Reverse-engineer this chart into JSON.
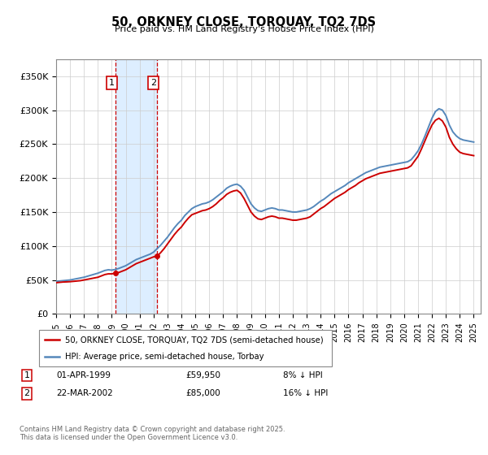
{
  "title": "50, ORKNEY CLOSE, TORQUAY, TQ2 7DS",
  "subtitle": "Price paid vs. HM Land Registry's House Price Index (HPI)",
  "legend_label_red": "50, ORKNEY CLOSE, TORQUAY, TQ2 7DS (semi-detached house)",
  "legend_label_blue": "HPI: Average price, semi-detached house, Torbay",
  "footer": "Contains HM Land Registry data © Crown copyright and database right 2025.\nThis data is licensed under the Open Government Licence v3.0.",
  "xmin": 1995.0,
  "xmax": 2025.5,
  "ymin": 0,
  "ymax": 375000,
  "yticks": [
    0,
    50000,
    100000,
    150000,
    200000,
    250000,
    300000,
    350000
  ],
  "ytick_labels": [
    "£0",
    "£50K",
    "£100K",
    "£150K",
    "£200K",
    "£250K",
    "£300K",
    "£350K"
  ],
  "purchase1_date": 1999.25,
  "purchase1_price": 59950,
  "purchase2_date": 2002.22,
  "purchase2_price": 85000,
  "color_red": "#cc0000",
  "color_blue": "#5588bb",
  "color_shade": "#ddeeff",
  "grid_color": "#cccccc",
  "xtick_years": [
    1995,
    1996,
    1997,
    1998,
    1999,
    2000,
    2001,
    2002,
    2003,
    2004,
    2005,
    2006,
    2007,
    2008,
    2009,
    2010,
    2011,
    2012,
    2013,
    2014,
    2015,
    2016,
    2017,
    2018,
    2019,
    2020,
    2021,
    2022,
    2023,
    2024,
    2025
  ],
  "hpi_years": [
    1995.0,
    1995.25,
    1995.5,
    1995.75,
    1996.0,
    1996.25,
    1996.5,
    1996.75,
    1997.0,
    1997.25,
    1997.5,
    1997.75,
    1998.0,
    1998.25,
    1998.5,
    1998.75,
    1999.0,
    1999.25,
    1999.5,
    1999.75,
    2000.0,
    2000.25,
    2000.5,
    2000.75,
    2001.0,
    2001.25,
    2001.5,
    2001.75,
    2002.0,
    2002.25,
    2002.5,
    2002.75,
    2003.0,
    2003.25,
    2003.5,
    2003.75,
    2004.0,
    2004.25,
    2004.5,
    2004.75,
    2005.0,
    2005.25,
    2005.5,
    2005.75,
    2006.0,
    2006.25,
    2006.5,
    2006.75,
    2007.0,
    2007.25,
    2007.5,
    2007.75,
    2008.0,
    2008.25,
    2008.5,
    2008.75,
    2009.0,
    2009.25,
    2009.5,
    2009.75,
    2010.0,
    2010.25,
    2010.5,
    2010.75,
    2011.0,
    2011.25,
    2011.5,
    2011.75,
    2012.0,
    2012.25,
    2012.5,
    2012.75,
    2013.0,
    2013.25,
    2013.5,
    2013.75,
    2014.0,
    2014.25,
    2014.5,
    2014.75,
    2015.0,
    2015.25,
    2015.5,
    2015.75,
    2016.0,
    2016.25,
    2016.5,
    2016.75,
    2017.0,
    2017.25,
    2017.5,
    2017.75,
    2018.0,
    2018.25,
    2018.5,
    2018.75,
    2019.0,
    2019.25,
    2019.5,
    2019.75,
    2020.0,
    2020.25,
    2020.5,
    2020.75,
    2021.0,
    2021.25,
    2021.5,
    2021.75,
    2022.0,
    2022.25,
    2022.5,
    2022.75,
    2023.0,
    2023.25,
    2023.5,
    2023.75,
    2024.0,
    2024.25,
    2024.5,
    2024.75,
    2025.0
  ],
  "hpi_vals": [
    48000,
    48500,
    49000,
    49500,
    50000,
    51000,
    52000,
    53000,
    54000,
    55500,
    57000,
    58500,
    60000,
    62000,
    64000,
    65000,
    64500,
    65500,
    67000,
    69000,
    71000,
    74000,
    77000,
    80000,
    82000,
    84000,
    86000,
    88000,
    91000,
    96000,
    101000,
    107000,
    113000,
    120000,
    127000,
    133000,
    138000,
    145000,
    150000,
    155000,
    158000,
    160000,
    162000,
    163000,
    165000,
    168000,
    172000,
    176000,
    180000,
    185000,
    188000,
    190000,
    191000,
    188000,
    182000,
    172000,
    162000,
    156000,
    152000,
    151000,
    153000,
    155000,
    156000,
    155000,
    153000,
    153000,
    152000,
    151000,
    150000,
    150000,
    151000,
    152000,
    153000,
    155000,
    158000,
    162000,
    166000,
    169000,
    173000,
    177000,
    180000,
    183000,
    186000,
    189000,
    193000,
    196000,
    199000,
    202000,
    205000,
    208000,
    210000,
    212000,
    214000,
    216000,
    217000,
    218000,
    219000,
    220000,
    221000,
    222000,
    223000,
    224000,
    227000,
    233000,
    240000,
    250000,
    262000,
    275000,
    288000,
    298000,
    302000,
    300000,
    292000,
    278000,
    268000,
    262000,
    258000,
    256000,
    255000,
    254000,
    253000
  ],
  "red_years": [
    1995.0,
    1995.25,
    1995.5,
    1995.75,
    1996.0,
    1996.25,
    1996.5,
    1996.75,
    1997.0,
    1997.25,
    1997.5,
    1997.75,
    1998.0,
    1998.25,
    1998.5,
    1998.75,
    1999.0,
    1999.25,
    1999.5,
    1999.75,
    2000.0,
    2000.25,
    2000.5,
    2000.75,
    2001.0,
    2001.25,
    2001.5,
    2001.75,
    2002.0,
    2002.25,
    2002.5,
    2002.75,
    2003.0,
    2003.25,
    2003.5,
    2003.75,
    2004.0,
    2004.25,
    2004.5,
    2004.75,
    2005.0,
    2005.25,
    2005.5,
    2005.75,
    2006.0,
    2006.25,
    2006.5,
    2006.75,
    2007.0,
    2007.25,
    2007.5,
    2007.75,
    2008.0,
    2008.25,
    2008.5,
    2008.75,
    2009.0,
    2009.25,
    2009.5,
    2009.75,
    2010.0,
    2010.25,
    2010.5,
    2010.75,
    2011.0,
    2011.25,
    2011.5,
    2011.75,
    2012.0,
    2012.25,
    2012.5,
    2012.75,
    2013.0,
    2013.25,
    2013.5,
    2013.75,
    2014.0,
    2014.25,
    2014.5,
    2014.75,
    2015.0,
    2015.25,
    2015.5,
    2015.75,
    2016.0,
    2016.25,
    2016.5,
    2016.75,
    2017.0,
    2017.25,
    2017.5,
    2017.75,
    2018.0,
    2018.25,
    2018.5,
    2018.75,
    2019.0,
    2019.25,
    2019.5,
    2019.75,
    2020.0,
    2020.25,
    2020.5,
    2020.75,
    2021.0,
    2021.25,
    2021.5,
    2021.75,
    2022.0,
    2022.25,
    2022.5,
    2022.75,
    2023.0,
    2023.25,
    2023.5,
    2023.75,
    2024.0,
    2024.25,
    2024.5,
    2024.75,
    2025.0
  ],
  "red_vals": [
    46000,
    46500,
    47000,
    47200,
    47500,
    48000,
    48500,
    49000,
    50000,
    51000,
    52000,
    53000,
    54000,
    56000,
    58000,
    59000,
    59000,
    59950,
    61000,
    63000,
    65000,
    68000,
    71000,
    74000,
    76000,
    78000,
    80000,
    82000,
    84000,
    85000,
    90000,
    96000,
    103000,
    110000,
    117000,
    123000,
    128000,
    135000,
    141000,
    146000,
    148000,
    150000,
    152000,
    153000,
    155000,
    158000,
    162000,
    167000,
    171000,
    176000,
    179000,
    181000,
    182000,
    178000,
    170000,
    160000,
    150000,
    144000,
    140000,
    139000,
    141000,
    143000,
    144000,
    143000,
    141000,
    141000,
    140000,
    139000,
    138000,
    138000,
    139000,
    140000,
    141000,
    143000,
    147000,
    151000,
    155000,
    158000,
    162000,
    166000,
    170000,
    173000,
    176000,
    179000,
    183000,
    186000,
    189000,
    193000,
    196000,
    199000,
    201000,
    203000,
    205000,
    207000,
    208000,
    209000,
    210000,
    211000,
    212000,
    213000,
    214000,
    215000,
    218000,
    225000,
    232000,
    243000,
    255000,
    267000,
    278000,
    285000,
    288000,
    284000,
    275000,
    260000,
    250000,
    243000,
    238000,
    236000,
    235000,
    234000,
    233000
  ]
}
